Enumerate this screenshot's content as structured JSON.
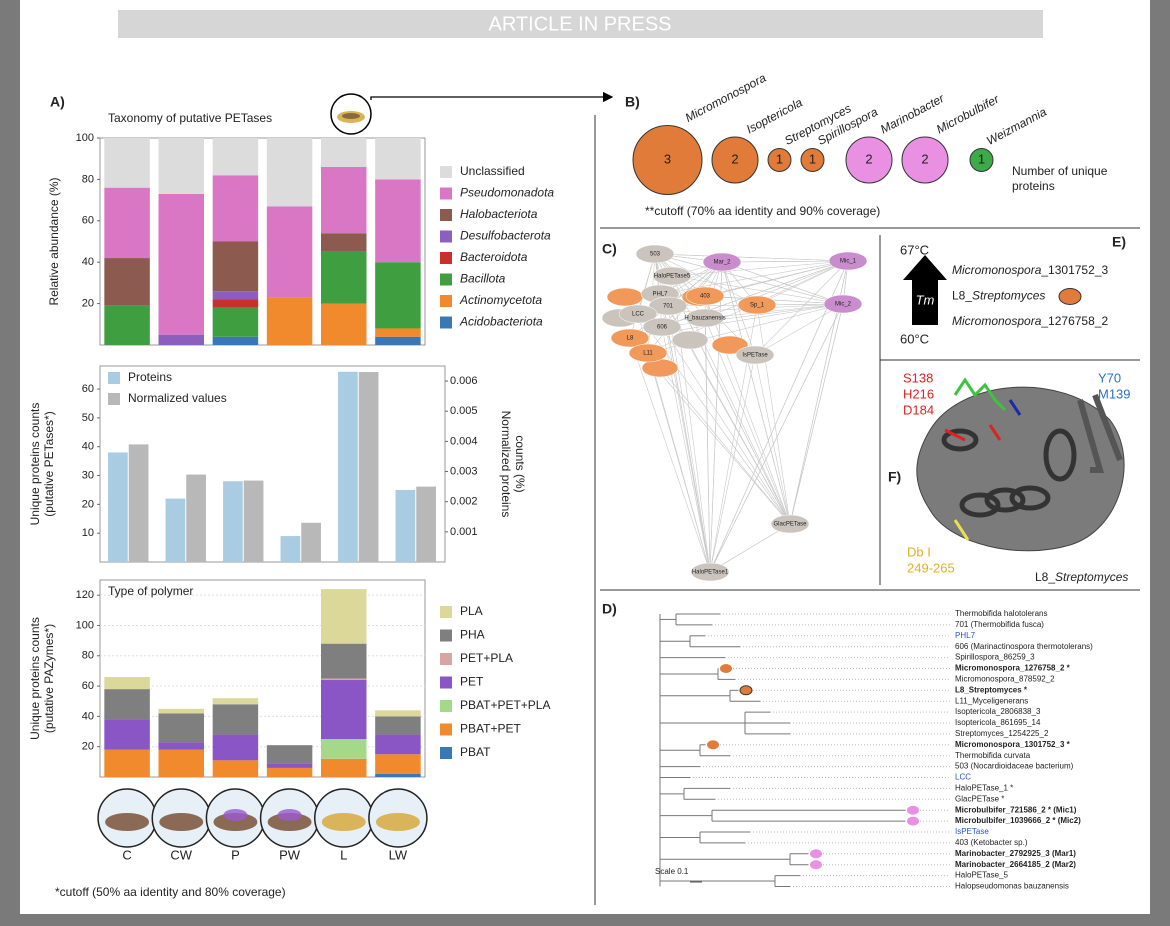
{
  "header": {
    "banner": "ARTICLE IN PRESS"
  },
  "panel_a": {
    "label": "A)",
    "footnote": "*cutoff (50% aa identity and 80% coverage)"
  },
  "chart_data": [
    {
      "type": "stacked_bar",
      "title": "Taxonomy of putative PETases",
      "y_label": [
        "Relative abundance (%)"
      ],
      "ylim": [
        0,
        100
      ],
      "yticks": [
        20,
        40,
        60,
        80,
        100
      ],
      "legend": "right",
      "series": [
        {
          "name": "Acidobacteriota",
          "color": "#3a78b5",
          "italic": true,
          "values": [
            0,
            0,
            4,
            0,
            0,
            4
          ]
        },
        {
          "name": "Actinomycetota",
          "color": "#f08a2c",
          "italic": true,
          "values": [
            0,
            0,
            0,
            23,
            20,
            4
          ]
        },
        {
          "name": "Bacillota",
          "color": "#3f9e3f",
          "italic": true,
          "values": [
            19,
            0,
            14,
            0,
            25,
            32
          ]
        },
        {
          "name": "Bacteroidota",
          "color": "#c9302c",
          "italic": true,
          "values": [
            0,
            0,
            4,
            0,
            0,
            0
          ]
        },
        {
          "name": "Desulfobacterota",
          "color": "#8c5fbf",
          "italic": true,
          "values": [
            0,
            5,
            4,
            0,
            0,
            0
          ]
        },
        {
          "name": "Halobacteriota",
          "color": "#8c5a4f",
          "italic": true,
          "values": [
            23,
            0,
            24,
            0,
            9,
            0
          ]
        },
        {
          "name": "Pseudomonadota",
          "color": "#d977c4",
          "italic": true,
          "values": [
            34,
            68,
            32,
            44,
            32,
            40
          ]
        },
        {
          "name": "Unclassified",
          "color": "#dcdcdc",
          "values": [
            24,
            27,
            18,
            33,
            14,
            20
          ]
        }
      ]
    },
    {
      "type": "grouped_bar",
      "y_label": [
        "Unique proteins counts",
        "(putative PETases*)"
      ],
      "y2_label": [
        "Normalized proteins",
        "counts (%)"
      ],
      "ylim": [
        0,
        68
      ],
      "yticks": [
        10,
        20,
        30,
        40,
        50,
        60
      ],
      "y2lim": [
        0,
        0.0065
      ],
      "y2ticks": [
        0.001,
        0.002,
        0.003,
        0.004,
        0.005,
        0.006
      ],
      "legend": "upper left",
      "series": [
        {
          "name": "Proteins",
          "color": "#a9cce3",
          "values": [
            38,
            22,
            28,
            9,
            66,
            25
          ]
        },
        {
          "name": "Normalized values",
          "color": "#b8b8b8",
          "axis": "y2",
          "values": [
            0.0039,
            0.0029,
            0.0027,
            0.0013,
            0.0063,
            0.0025
          ]
        }
      ]
    },
    {
      "type": "stacked_bar",
      "title": "Type of polymer",
      "y_label": [
        "Unique proteins counts",
        "(putative PAZymes*)"
      ],
      "categories": [
        "C",
        "CW",
        "P",
        "PW",
        "L",
        "LW"
      ],
      "ylim": [
        0,
        130
      ],
      "yticks": [
        20,
        40,
        60,
        80,
        100,
        120
      ],
      "grid": true,
      "legend": "right",
      "series": [
        {
          "name": "PBAT",
          "color": "#3a78b5",
          "values": [
            0,
            0,
            0,
            0,
            0,
            2
          ]
        },
        {
          "name": "PBAT+PET",
          "color": "#f08a2c",
          "values": [
            18,
            18,
            11,
            6,
            12,
            13
          ]
        },
        {
          "name": "PBAT+PET+PLA",
          "color": "#a5d98a",
          "values": [
            0,
            0,
            0,
            0,
            13,
            0
          ]
        },
        {
          "name": "PET",
          "color": "#8a55c4",
          "values": [
            20,
            5,
            17,
            3,
            39,
            13
          ]
        },
        {
          "name": "PET+PLA",
          "color": "#d8a6a0",
          "values": [
            0,
            0,
            0,
            0,
            1,
            0
          ]
        },
        {
          "name": "PHA",
          "color": "#7f7f7f",
          "values": [
            20,
            19,
            20,
            12,
            23,
            12
          ]
        },
        {
          "name": "PLA",
          "color": "#dcd89a",
          "values": [
            8,
            3,
            4,
            0,
            36,
            4
          ]
        }
      ]
    }
  ],
  "panel_b": {
    "label": "B)",
    "bubbles": [
      {
        "name": "Micromonospora",
        "value": 3,
        "color": "#e07b39"
      },
      {
        "name": "Isoptericola",
        "value": 2,
        "color": "#e07b39"
      },
      {
        "name": "Streptomyces",
        "value": 1,
        "color": "#e07b39"
      },
      {
        "name": "Spirillospora",
        "value": 1,
        "color": "#e07b39"
      },
      {
        "name": "Marinobacter",
        "value": 2,
        "color": "#ea90e2"
      },
      {
        "name": "Microbulbifer",
        "value": 2,
        "color": "#ea90e2"
      },
      {
        "name": "Weizmannia",
        "value": 1,
        "color": "#3daa4a"
      }
    ],
    "legend": [
      "Number of unique",
      "proteins"
    ],
    "footnote": "**cutoff (70% aa identity and 90% coverage)"
  },
  "panel_c": {
    "label": "C)",
    "nodes": [
      {
        "label": "503",
        "color": "#cbc4bc"
      },
      {
        "label": "Mar_2",
        "color": "#c98ccc"
      },
      {
        "label": "Mic_1",
        "color": "#c98ccc"
      },
      {
        "label": "HaloPETase5",
        "color": "#cbc4bc"
      },
      {
        "label": "PHL7",
        "color": "#cbc4bc"
      },
      {
        "label": "701",
        "color": "#cbc4bc"
      },
      {
        "label": "LCC",
        "color": "#cbc4bc"
      },
      {
        "label": "606",
        "color": "#cbc4bc"
      },
      {
        "label": "H_bauzanensis",
        "color": "#cbc4bc"
      },
      {
        "label": "Sp_1",
        "color": "#f0995a"
      },
      {
        "label": "Mic_2",
        "color": "#c98ccc"
      },
      {
        "label": "L8",
        "color": "#f0995a"
      },
      {
        "label": "L11",
        "color": "#f0995a"
      },
      {
        "label": "403",
        "color": "#f0995a"
      },
      {
        "label": "IsPETase",
        "color": "#cbc4bc"
      },
      {
        "label": "GlacPETase",
        "color": "#cbc4bc"
      },
      {
        "label": "HaloPETase1",
        "color": "#cbc4bc"
      }
    ]
  },
  "panel_e": {
    "label": "E)",
    "high": "67°C",
    "low": "60°C",
    "arrow": "Tm",
    "entries": [
      {
        "parts": [
          {
            "text": "Micromonospora",
            "italic": true
          },
          {
            "text": "_1301752_3"
          }
        ]
      },
      {
        "parts": [
          {
            "text": "L8_"
          },
          {
            "text": "Streptomyces",
            "italic": true
          }
        ],
        "marker": "#e07b39"
      },
      {
        "parts": [
          {
            "text": "Micromonospora",
            "italic": true
          },
          {
            "text": "_1276758_2"
          }
        ]
      }
    ]
  },
  "panel_f": {
    "label": "F)",
    "catalytic": [
      "S138",
      "H216",
      "D184"
    ],
    "binding": [
      "Y70",
      "M139"
    ],
    "disulfide": [
      "Db I",
      "249-265"
    ],
    "caption": [
      {
        "text": "L8_"
      },
      {
        "text": "Streptomyces",
        "italic": true
      }
    ]
  },
  "panel_d": {
    "label": "D)",
    "scale": "Scale 0.1",
    "leaves": [
      {
        "text": "Thermobifida halotolerans"
      },
      {
        "text": "701 (Thermobifida fusca)"
      },
      {
        "text": "PHL7",
        "color": "#2a50c8"
      },
      {
        "text": "606 (Marinactinospora thermotolerans)"
      },
      {
        "text": "Spirillospora_86259_3"
      },
      {
        "text": "Micromonospora_1276758_2 *",
        "bold": true,
        "marker": "#e07b39"
      },
      {
        "text": "Micromonospora_878592_2"
      },
      {
        "text": "L8_Streptomyces *",
        "bold": true,
        "marker": "#e07b39"
      },
      {
        "text": "L11_Myceligenerans"
      },
      {
        "text": "Isoptericola_2806838_3"
      },
      {
        "text": "Isoptericola_861695_14"
      },
      {
        "text": "Streptomyces_1254225_2"
      },
      {
        "text": "Micromonospora_1301752_3 *",
        "bold": true,
        "marker": "#e07b39"
      },
      {
        "text": "Thermobifida curvata"
      },
      {
        "text": "503 (Nocardioidaceae bacterium)"
      },
      {
        "text": "LCC",
        "color": "#2a50c8"
      },
      {
        "text": "HaloPETase_1 *"
      },
      {
        "text": "GlacPETase *"
      },
      {
        "text": "Microbulbifer_721586_2 * (Mic1)",
        "bold": true,
        "marker": "#ea90e2"
      },
      {
        "text": "Microbulbifer_1039666_2 * (Mic2)",
        "bold": true,
        "marker": "#ea90e2"
      },
      {
        "text": "IsPETase",
        "color": "#2a50c8"
      },
      {
        "text": "403 (Ketobacter sp.)"
      },
      {
        "text": "Marinobacter_2792925_3 (Mar1)",
        "bold": true,
        "marker": "#ea90e2"
      },
      {
        "text": "Marinobacter_2664185_2 (Mar2)",
        "bold": true,
        "marker": "#ea90e2"
      },
      {
        "text": "HaloPETase_5"
      },
      {
        "text": "Halopseudomonas bauzanensis"
      }
    ]
  }
}
